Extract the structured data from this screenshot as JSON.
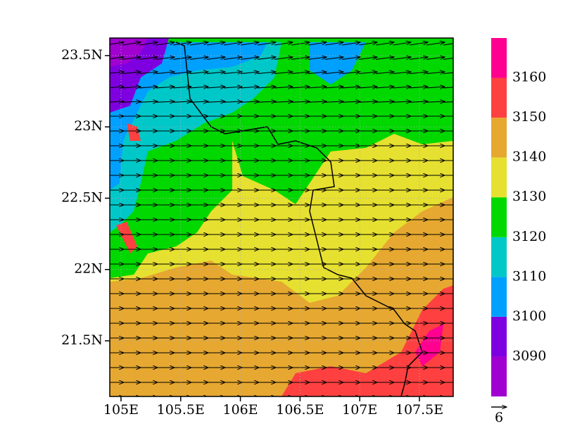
{
  "map": {
    "xlim": [
      104.906,
      107.783
    ],
    "ylim": [
      21.11,
      23.623
    ],
    "xticks": [
      {
        "value": 105,
        "label": "105E"
      },
      {
        "value": 105.5,
        "label": "105.5E"
      },
      {
        "value": 106,
        "label": "106E"
      },
      {
        "value": 106.5,
        "label": "106.5E"
      },
      {
        "value": 107,
        "label": "107E"
      },
      {
        "value": 107.5,
        "label": "107.5E"
      }
    ],
    "yticks": [
      {
        "value": 21.5,
        "label": "21.5N"
      },
      {
        "value": 22,
        "label": "22N"
      },
      {
        "value": 22.5,
        "label": "22.5N"
      },
      {
        "value": 23,
        "label": "23N"
      },
      {
        "value": 23.5,
        "label": "23.5N"
      }
    ],
    "grid": true,
    "colorbar": {
      "lim": [
        3080,
        3170
      ],
      "levels": [
        3090,
        3100,
        3110,
        3120,
        3130,
        3140,
        3150,
        3160
      ],
      "colors": [
        "#a000d0",
        "#7e00e0",
        "#00a0ff",
        "#00c8c8",
        "#00d800",
        "#e6e030",
        "#e6a830",
        "#ff4040",
        "#ff0090"
      ]
    },
    "reference_vector": {
      "label": "6"
    }
  }
}
